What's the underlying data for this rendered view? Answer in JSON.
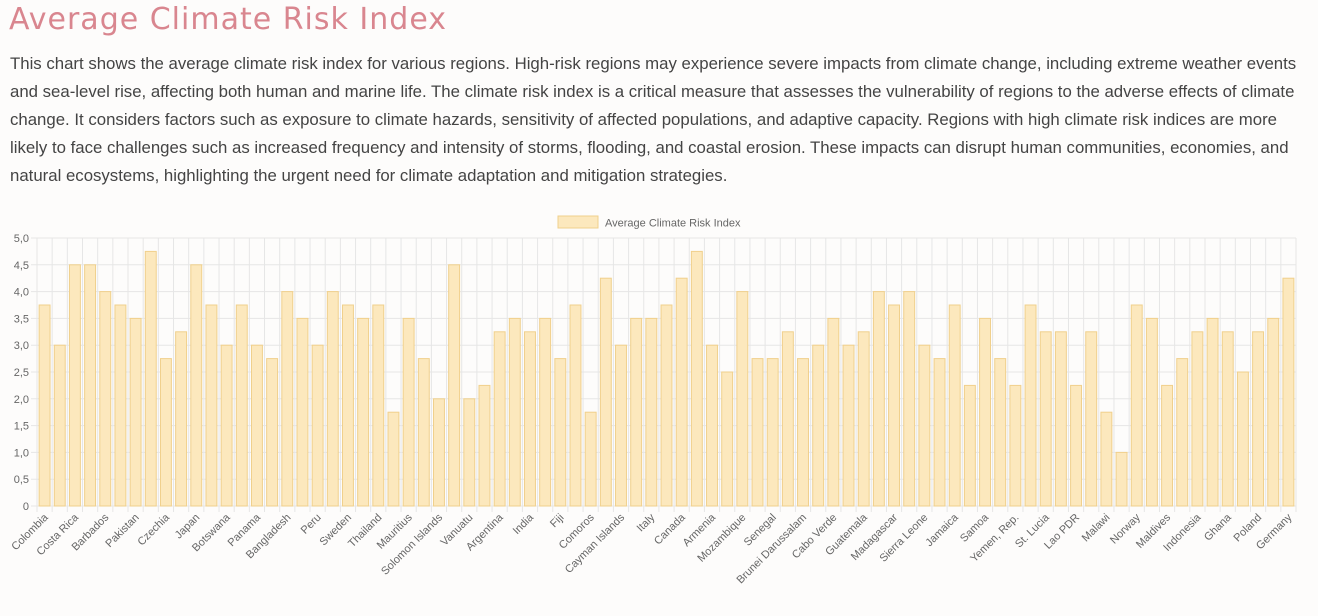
{
  "page": {
    "title": "Average Climate Risk Index",
    "description": "This chart shows the average climate risk index for various regions. High-risk regions may experience severe impacts from climate change, including extreme weather events and sea-level rise, affecting both human and marine life. The climate risk index is a critical measure that assesses the vulnerability of regions to the adverse effects of climate change. It considers factors such as exposure to climate hazards, sensitivity of affected populations, and adaptive capacity. Regions with high climate risk indices are more likely to face challenges such as increased frequency and intensity of storms, flooding, and coastal erosion. These impacts can disrupt human communities, economies, and natural ecosystems, highlighting the urgent need for climate adaptation and mitigation strategies."
  },
  "chart_data": {
    "type": "bar",
    "legend": {
      "position": "top-center"
    },
    "grid": true,
    "ylim": [
      0,
      5
    ],
    "yticks": [
      "0",
      "0,5",
      "1,0",
      "1,5",
      "2,0",
      "2,5",
      "3,0",
      "3,5",
      "4,0",
      "4,5",
      "5,0"
    ],
    "colors": {
      "bar_fill": "#fce8bd",
      "bar_stroke": "#f0d08c",
      "grid": "#e6e6e6",
      "axis_text": "#666666"
    },
    "categories": [
      "Colombia",
      "",
      "Costa Rica",
      "",
      "Barbados",
      "",
      "Pakistan",
      "",
      "Czechia",
      "",
      "Japan",
      "",
      "Botswana",
      "",
      "Panama",
      "",
      "Bangladesh",
      "",
      "Peru",
      "",
      "Sweden",
      "",
      "Thailand",
      "",
      "Mauritius",
      "",
      "Solomon Islands",
      "",
      "Vanuatu",
      "",
      "Argentina",
      "",
      "India",
      "",
      "Fiji",
      "",
      "Comoros",
      "",
      "Cayman Islands",
      "",
      "Italy",
      "",
      "Canada",
      "",
      "Armenia",
      "",
      "Mozambique",
      "",
      "Senegal",
      "",
      "Brunei Darussalam",
      "",
      "Cabo Verde",
      "",
      "Guatemala",
      "",
      "Madagascar",
      "",
      "Sierra Leone",
      "",
      "Jamaica",
      "",
      "Samoa",
      "",
      "Yemen, Rep.",
      "",
      "St. Lucia",
      "",
      "Lao PDR",
      "",
      "Malawi",
      "",
      "Norway",
      "",
      "Maldives",
      "",
      "Indonesia",
      "",
      "Ghana",
      "",
      "Poland",
      "",
      "Germany"
    ],
    "series": [
      {
        "name": "Average Climate Risk Index",
        "values": [
          3.75,
          3.0,
          4.5,
          4.5,
          4.0,
          3.75,
          3.5,
          4.75,
          2.75,
          3.25,
          4.5,
          3.75,
          3.0,
          3.75,
          3.0,
          2.75,
          4.0,
          3.5,
          3.0,
          4.0,
          3.75,
          3.5,
          3.75,
          1.75,
          3.5,
          2.75,
          2.0,
          4.5,
          2.0,
          2.25,
          3.25,
          3.5,
          3.25,
          3.5,
          2.75,
          3.75,
          1.75,
          4.25,
          3.0,
          3.5,
          3.5,
          3.75,
          4.25,
          4.75,
          3.0,
          2.5,
          4.0,
          2.75,
          2.75,
          3.25,
          2.75,
          3.0,
          3.5,
          3.0,
          3.25,
          4.0,
          3.75,
          4.0,
          3.0,
          2.75,
          3.75,
          2.25,
          3.5,
          2.75,
          2.25,
          3.75,
          3.25,
          3.25,
          2.25,
          3.25,
          1.75,
          1.0,
          3.75,
          3.5,
          2.25,
          2.75,
          3.25,
          3.5,
          3.25,
          2.5,
          3.25,
          3.5,
          4.25
        ]
      }
    ]
  }
}
